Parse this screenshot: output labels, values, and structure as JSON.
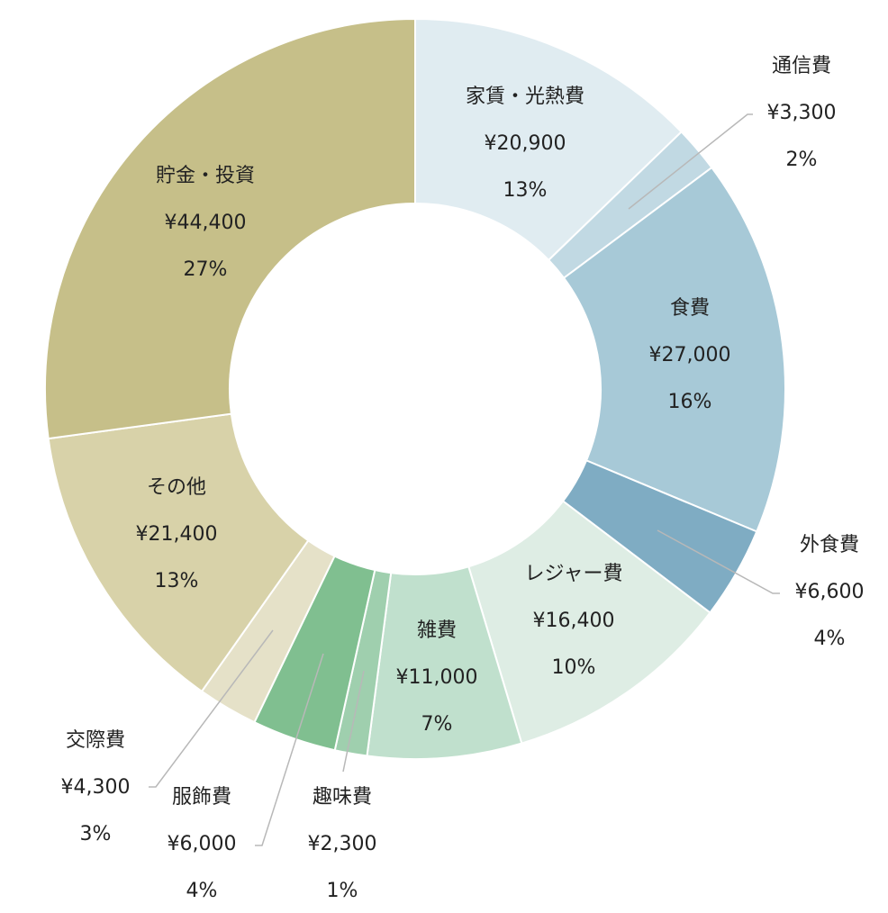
{
  "chart_data": {
    "type": "pie",
    "title": "",
    "series": [
      {
        "name": "家賃・光熱費",
        "amount": "¥20,900",
        "percent": "13%",
        "value": 20900,
        "color": "#e0ecf1"
      },
      {
        "name": "通信費",
        "amount": "¥3,300",
        "percent": "2%",
        "value": 3300,
        "color": "#c1d9e3"
      },
      {
        "name": "食費",
        "amount": "¥27,000",
        "percent": "16%",
        "value": 27000,
        "color": "#a7c9d7"
      },
      {
        "name": "外食費",
        "amount": "¥6,600",
        "percent": "4%",
        "value": 6600,
        "color": "#7facc3"
      },
      {
        "name": "レジャー費",
        "amount": "¥16,400",
        "percent": "10%",
        "value": 16400,
        "color": "#deede4"
      },
      {
        "name": "雑費",
        "amount": "¥11,000",
        "percent": "7%",
        "value": 11000,
        "color": "#c0e0cd"
      },
      {
        "name": "趣味費",
        "amount": "¥2,300",
        "percent": "1%",
        "value": 2300,
        "color": "#9fcfae"
      },
      {
        "name": "服飾費",
        "amount": "¥6,000",
        "percent": "4%",
        "value": 6000,
        "color": "#80bf90"
      },
      {
        "name": "交際費",
        "amount": "¥4,300",
        "percent": "3%",
        "value": 4300,
        "color": "#e5e1c8"
      },
      {
        "name": "その他",
        "amount": "¥21,400",
        "percent": "13%",
        "value": 21400,
        "color": "#d8d2a9"
      },
      {
        "name": "貯金・投資",
        "amount": "¥44,400",
        "percent": "27%",
        "value": 44400,
        "color": "#c6bf89"
      }
    ]
  }
}
